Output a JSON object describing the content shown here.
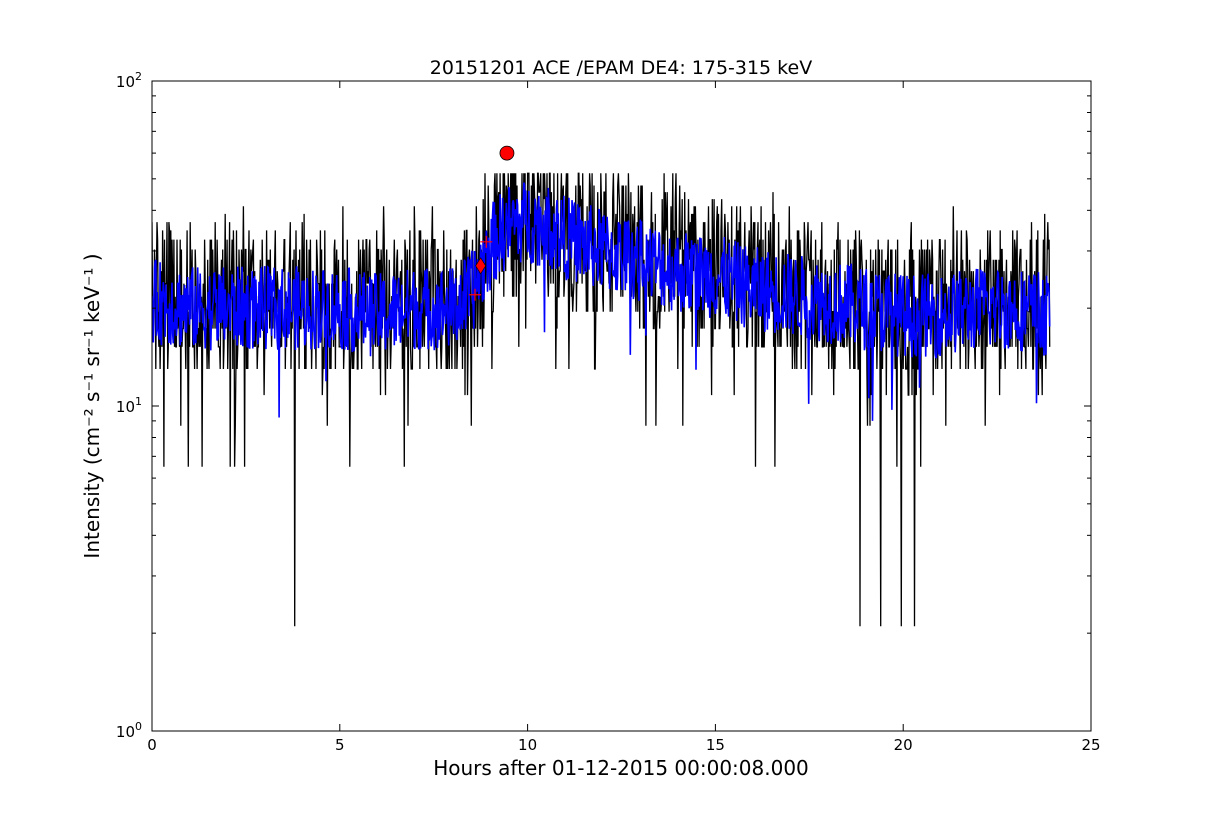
{
  "chart_data": {
    "type": "line",
    "title": "20151201 ACE /EPAM DE4: 175-315 keV",
    "xlabel": "Hours after 01-12-2015 00:00:08.000",
    "ylabel": "Intensity (cm⁻² s⁻¹ sr⁻¹ keV⁻¹ )",
    "xlim": [
      0,
      25
    ],
    "ylim": [
      1,
      100
    ],
    "yscale": "log",
    "grid": false,
    "x_ticks": [
      "0",
      "5",
      "10",
      "15",
      "20",
      "25"
    ],
    "x_tick_values": [
      0,
      5,
      10,
      15,
      20,
      25
    ],
    "y_ticks": [
      {
        "base": "10",
        "exp": "0",
        "value": 1
      },
      {
        "base": "10",
        "exp": "1",
        "value": 10
      },
      {
        "base": "10",
        "exp": "2",
        "value": 100
      }
    ],
    "series": [
      {
        "role": "raw-intensity",
        "color": "#000000",
        "style": "noisy line",
        "x": [
          0,
          1,
          2,
          3,
          4,
          5,
          6,
          7,
          8,
          8.5,
          8.8,
          9.1,
          9.5,
          10,
          10.5,
          11,
          12,
          13,
          14,
          15,
          16,
          17,
          18,
          19,
          20,
          21,
          22,
          23,
          23.9
        ],
        "y": [
          22,
          21,
          21,
          20,
          21,
          20,
          20,
          20,
          21,
          22,
          26,
          33,
          37,
          38,
          37,
          34,
          31,
          29,
          27,
          25,
          24,
          23,
          22,
          20,
          19,
          20,
          21,
          20,
          20
        ],
        "min": 2.1,
        "max": 55
      },
      {
        "role": "smoothed-intensity",
        "color": "#0000ff",
        "style": "line",
        "x": [
          0,
          1,
          2,
          3,
          4,
          5,
          6,
          7,
          8,
          8.5,
          8.8,
          9.1,
          9.5,
          10,
          10.5,
          11,
          12,
          13,
          14,
          15,
          16,
          17,
          18,
          19,
          20,
          21,
          22,
          23,
          23.9
        ],
        "y": [
          21,
          20,
          20,
          20,
          20,
          20,
          19,
          20,
          20,
          22,
          27,
          32,
          36,
          37,
          36,
          33,
          30,
          28,
          26,
          25,
          23,
          22,
          21,
          20,
          19,
          19,
          20,
          20,
          19
        ]
      }
    ],
    "markers": [
      {
        "shape": "plus",
        "color": "#ff0000",
        "x": 8.6,
        "y": 22
      },
      {
        "shape": "plus",
        "color": "#ff0000",
        "x": 8.9,
        "y": 32
      },
      {
        "shape": "diamond",
        "color": "#ff0000",
        "x": 8.75,
        "y": 27
      },
      {
        "shape": "circle",
        "color": "#ff0000",
        "x": 9.45,
        "y": 60
      }
    ]
  }
}
